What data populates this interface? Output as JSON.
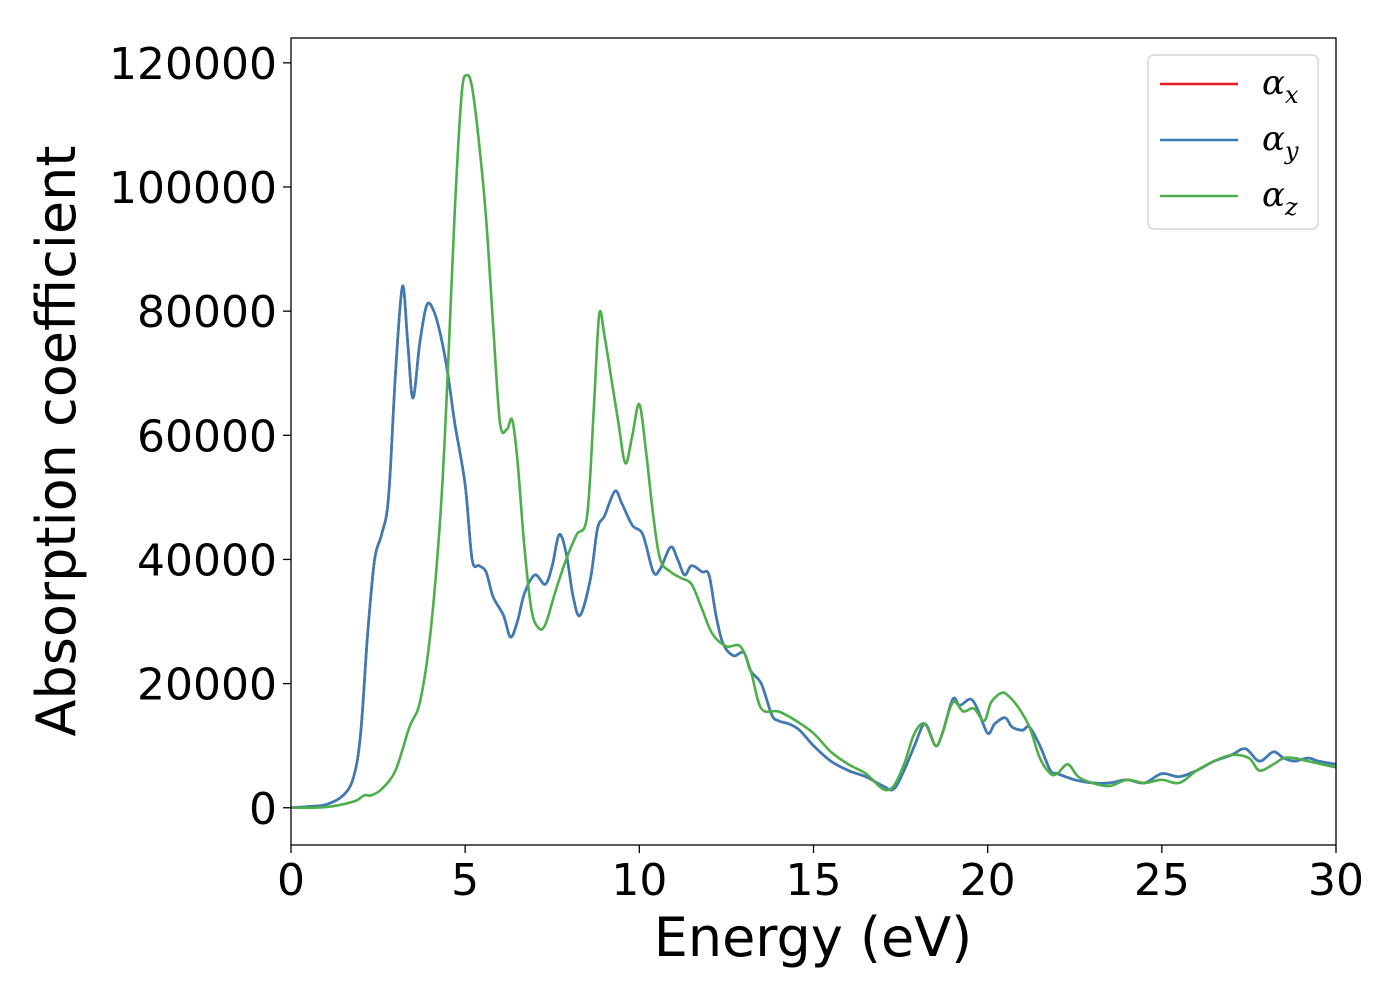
{
  "chart_data": {
    "type": "line",
    "xlabel": "Energy (eV)",
    "ylabel": "Absorption coefficient",
    "xlim": [
      0,
      30
    ],
    "ylim": [
      -6000,
      124000
    ],
    "xticks": [
      0,
      5,
      10,
      15,
      20,
      25,
      30
    ],
    "yticks": [
      0,
      20000,
      40000,
      60000,
      80000,
      100000,
      120000
    ],
    "grid": false,
    "legend_position": "top-right",
    "series": [
      {
        "name": "α",
        "subscript": "x",
        "color": "#e41a1c",
        "x": [
          0,
          0.5,
          1,
          1.5,
          1.8,
          2,
          2.2,
          2.4,
          2.6,
          2.8,
          3,
          3.2,
          3.35,
          3.5,
          3.7,
          3.9,
          4.1,
          4.3,
          4.5,
          4.7,
          5,
          5.2,
          5.4,
          5.6,
          5.8,
          6.1,
          6.3,
          6.5,
          6.7,
          7,
          7.3,
          7.5,
          7.7,
          7.9,
          8.1,
          8.3,
          8.6,
          8.8,
          9,
          9.3,
          9.5,
          9.8,
          10.1,
          10.4,
          10.6,
          10.9,
          11.1,
          11.3,
          11.5,
          11.8,
          12,
          12.2,
          12.4,
          12.7,
          13,
          13.2,
          13.5,
          13.8,
          14,
          14.3,
          14.6,
          15,
          15.5,
          16,
          16.5,
          17,
          17.3,
          17.6,
          17.9,
          18.2,
          18.5,
          18.7,
          19,
          19.2,
          19.5,
          19.7,
          20,
          20.2,
          20.5,
          20.7,
          21,
          21.2,
          21.5,
          21.8,
          22,
          22.5,
          23,
          23.5,
          24,
          24.5,
          25,
          25.5,
          26,
          26.5,
          27,
          27.4,
          27.8,
          28.2,
          28.5,
          28.8,
          29.2,
          29.5,
          30
        ],
        "y": [
          0,
          200,
          500,
          2000,
          5000,
          12000,
          28000,
          40000,
          44000,
          50000,
          70000,
          84000,
          75000,
          66000,
          75000,
          81000,
          80000,
          76000,
          70000,
          62000,
          52000,
          40000,
          39000,
          38000,
          34000,
          31000,
          27500,
          30000,
          34500,
          37500,
          36000,
          39000,
          44000,
          41000,
          34000,
          31000,
          37000,
          45000,
          47000,
          51000,
          49000,
          45500,
          44000,
          38000,
          38500,
          42000,
          40000,
          37500,
          39000,
          38000,
          37500,
          31000,
          26500,
          24500,
          25000,
          22000,
          20000,
          15000,
          14000,
          13500,
          12500,
          10000,
          7500,
          6000,
          5000,
          3500,
          3000,
          6000,
          10000,
          13500,
          10000,
          12000,
          17500,
          16500,
          17500,
          16000,
          12000,
          13500,
          14500,
          13000,
          12500,
          13000,
          10000,
          6000,
          5500,
          4500,
          4000,
          4000,
          4500,
          4000,
          5500,
          5000,
          6000,
          7500,
          8500,
          9500,
          7500,
          9000,
          8000,
          7500,
          8000,
          7500,
          7000
        ]
      },
      {
        "name": "α",
        "subscript": "y",
        "color": "#377eb8",
        "x": [
          0,
          0.5,
          1,
          1.5,
          1.8,
          2,
          2.2,
          2.4,
          2.6,
          2.8,
          3,
          3.2,
          3.35,
          3.5,
          3.7,
          3.9,
          4.1,
          4.3,
          4.5,
          4.7,
          5,
          5.2,
          5.4,
          5.6,
          5.8,
          6.1,
          6.3,
          6.5,
          6.7,
          7,
          7.3,
          7.5,
          7.7,
          7.9,
          8.1,
          8.3,
          8.6,
          8.8,
          9,
          9.3,
          9.5,
          9.8,
          10.1,
          10.4,
          10.6,
          10.9,
          11.1,
          11.3,
          11.5,
          11.8,
          12,
          12.2,
          12.4,
          12.7,
          13,
          13.2,
          13.5,
          13.8,
          14,
          14.3,
          14.6,
          15,
          15.5,
          16,
          16.5,
          17,
          17.3,
          17.6,
          17.9,
          18.2,
          18.5,
          18.7,
          19,
          19.2,
          19.5,
          19.7,
          20,
          20.2,
          20.5,
          20.7,
          21,
          21.2,
          21.5,
          21.8,
          22,
          22.5,
          23,
          23.5,
          24,
          24.5,
          25,
          25.5,
          26,
          26.5,
          27,
          27.4,
          27.8,
          28.2,
          28.5,
          28.8,
          29.2,
          29.5,
          30
        ],
        "y": [
          0,
          200,
          500,
          2000,
          5000,
          12000,
          28000,
          40000,
          44000,
          50000,
          70000,
          84000,
          75000,
          66000,
          75000,
          81000,
          80000,
          76000,
          70000,
          62000,
          52000,
          40000,
          39000,
          38000,
          34000,
          31000,
          27500,
          30000,
          34500,
          37500,
          36000,
          39000,
          44000,
          41000,
          34000,
          31000,
          37000,
          45000,
          47000,
          51000,
          49000,
          45500,
          44000,
          38000,
          38500,
          42000,
          40000,
          37500,
          39000,
          38000,
          37500,
          31000,
          26500,
          24500,
          25000,
          22000,
          20000,
          15000,
          14000,
          13500,
          12500,
          10000,
          7500,
          6000,
          5000,
          3500,
          3000,
          6000,
          10000,
          13500,
          10000,
          12000,
          17500,
          16500,
          17500,
          16000,
          12000,
          13500,
          14500,
          13000,
          12500,
          13000,
          10000,
          6000,
          5500,
          4500,
          4000,
          4000,
          4500,
          4000,
          5500,
          5000,
          6000,
          7500,
          8500,
          9500,
          7500,
          9000,
          8000,
          7500,
          8000,
          7500,
          7000
        ]
      },
      {
        "name": "α",
        "subscript": "z",
        "color": "#4daf4a",
        "x": [
          0,
          1,
          1.8,
          2.1,
          2.3,
          2.6,
          3,
          3.4,
          3.7,
          4,
          4.3,
          4.5,
          4.7,
          4.9,
          5.05,
          5.2,
          5.4,
          5.6,
          5.8,
          6,
          6.2,
          6.35,
          6.5,
          6.7,
          6.9,
          7.1,
          7.3,
          7.6,
          7.9,
          8.2,
          8.5,
          8.7,
          8.85,
          9,
          9.2,
          9.4,
          9.6,
          9.8,
          10,
          10.2,
          10.4,
          10.6,
          10.9,
          11.2,
          11.5,
          11.8,
          12.1,
          12.5,
          12.9,
          13.2,
          13.5,
          14,
          14.5,
          15,
          15.5,
          16,
          16.5,
          17,
          17.3,
          17.6,
          17.9,
          18.2,
          18.5,
          18.7,
          19,
          19.3,
          19.6,
          19.9,
          20.1,
          20.4,
          20.6,
          20.9,
          21.2,
          21.5,
          21.8,
          22,
          22.3,
          22.6,
          23,
          23.5,
          24,
          24.5,
          25,
          25.5,
          26,
          26.5,
          27,
          27.5,
          27.8,
          28.2,
          28.5,
          28.8,
          29.2,
          29.6,
          30
        ],
        "y": [
          0,
          100,
          1000,
          2000,
          2000,
          3000,
          6000,
          13000,
          17000,
          28000,
          48000,
          70000,
          96000,
          115000,
          118000,
          116000,
          107000,
          95000,
          78000,
          62000,
          61000,
          62500,
          56000,
          42000,
          32000,
          29000,
          29500,
          35000,
          40000,
          44000,
          47000,
          65000,
          79500,
          76000,
          69000,
          62000,
          55500,
          60000,
          65000,
          57000,
          47000,
          40000,
          38000,
          37000,
          36000,
          32000,
          28000,
          26000,
          26000,
          22000,
          16000,
          15500,
          14000,
          12000,
          9000,
          7000,
          5500,
          3000,
          3500,
          7000,
          12000,
          13500,
          10000,
          12000,
          17000,
          15500,
          16000,
          14000,
          17000,
          18500,
          18000,
          16000,
          13000,
          8000,
          5500,
          5500,
          7000,
          5000,
          4000,
          3500,
          4500,
          4000,
          4500,
          4000,
          6000,
          7500,
          8500,
          8000,
          6000,
          7000,
          8000,
          8000,
          7500,
          7000,
          6500
        ]
      }
    ]
  }
}
